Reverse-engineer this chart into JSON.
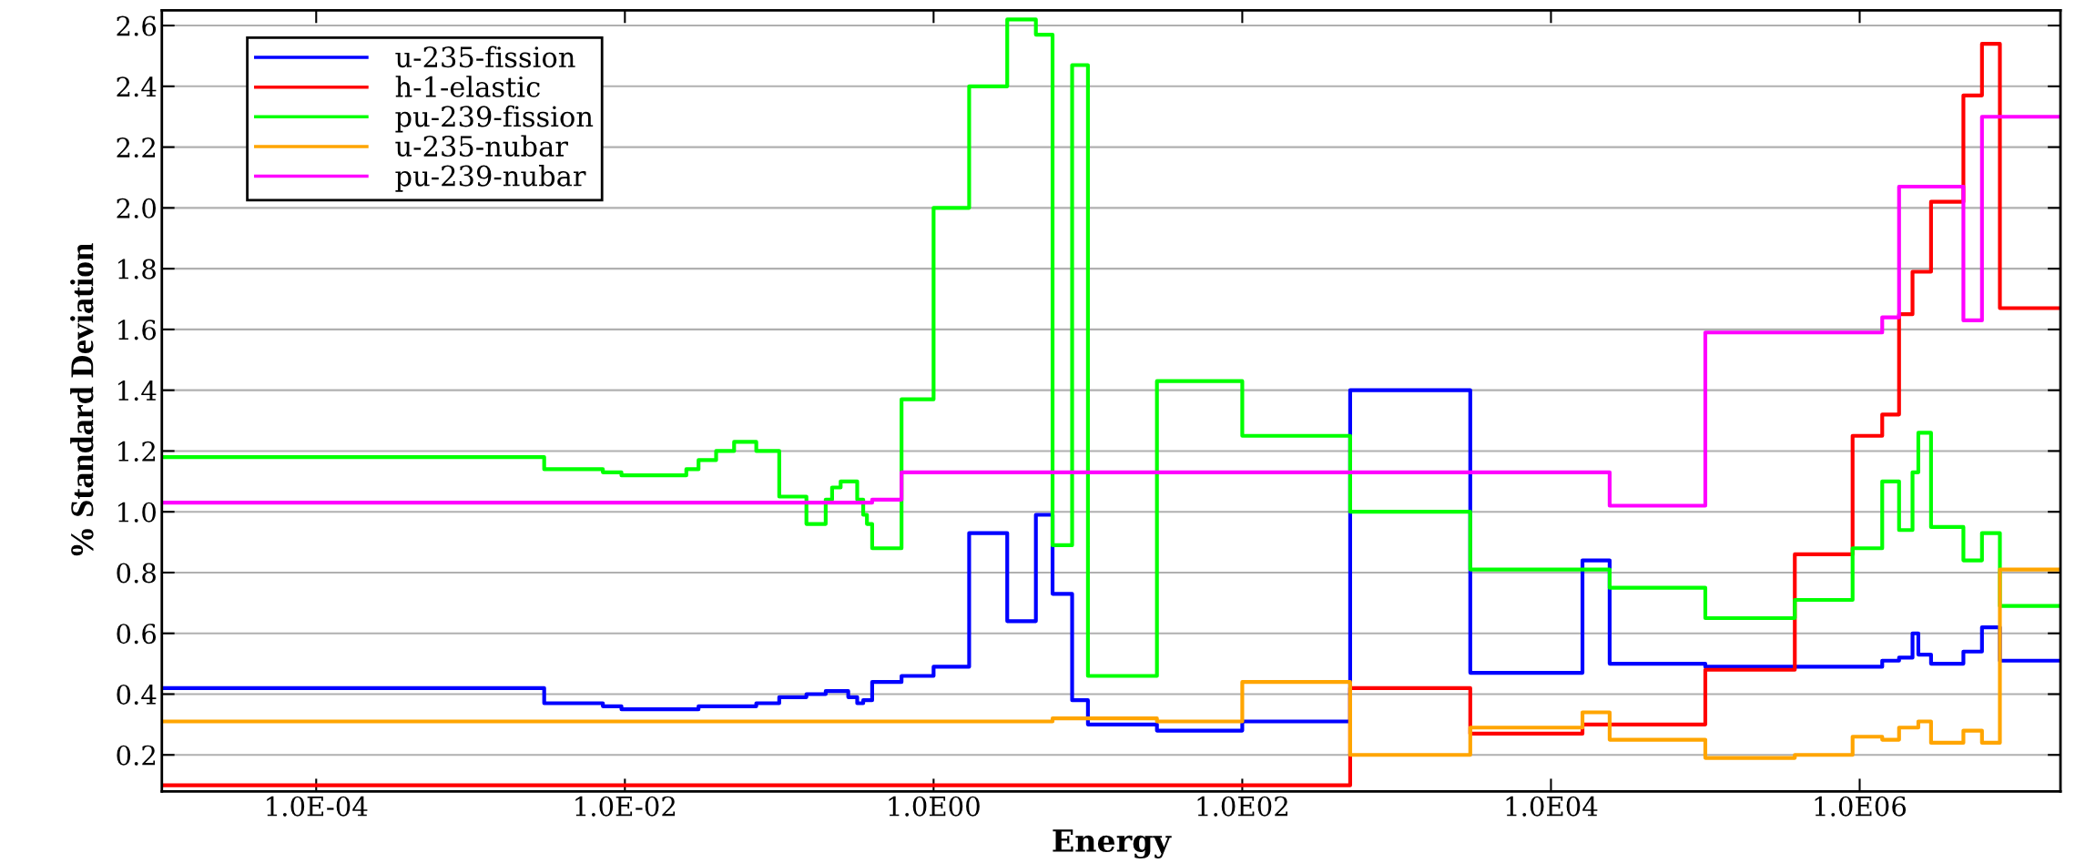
{
  "chart_data": {
    "type": "step",
    "xlabel": "Energy",
    "ylabel": "% Standard Deviation",
    "log": "x",
    "grid": "y",
    "legend": "top left",
    "xlim": [
      1e-05,
      20000000.0
    ],
    "xticks": [
      {
        "value": 0.0001,
        "label": "1.0E-04"
      },
      {
        "value": 0.01,
        "label": "1.0E-02"
      },
      {
        "value": 1,
        "label": "1.0E00"
      },
      {
        "value": 100,
        "label": "1.0E02"
      },
      {
        "value": 10000,
        "label": "1.0E04"
      },
      {
        "value": 1000000,
        "label": "1.0E06"
      }
    ],
    "ylim": [
      0.08,
      2.65
    ],
    "yticks": [
      0.2,
      0.4,
      0.6,
      0.8,
      {
        "value": 1,
        "label": "1.0"
      },
      1.2,
      1.4,
      1.6,
      1.8,
      {
        "value": 2,
        "label": "2.0"
      },
      2.2,
      2.4,
      2.6
    ],
    "series": [
      {
        "name": "u-235-fission",
        "color": "#0000ff",
        "x": [
          1e-05,
          0.003,
          0.0072,
          0.0095,
          0.03,
          0.051,
          0.071,
          0.1,
          0.15,
          0.2,
          0.28,
          0.32,
          0.35,
          0.4,
          0.62,
          1.0,
          1.7,
          3.0,
          4.6,
          5.9,
          7.9,
          10,
          28,
          100,
          500,
          3000,
          16000,
          24000,
          100000,
          900000,
          1400000,
          1800000,
          2200000,
          2400000,
          2900000,
          4700000,
          6200000,
          8100000,
          20000000
        ],
        "values": [
          0.42,
          0.37,
          0.36,
          0.35,
          0.36,
          0.36,
          0.37,
          0.39,
          0.4,
          0.41,
          0.39,
          0.37,
          0.38,
          0.44,
          0.46,
          0.49,
          0.93,
          0.64,
          0.99,
          0.73,
          0.38,
          0.3,
          0.28,
          0.31,
          1.4,
          0.47,
          0.84,
          0.5,
          0.49,
          0.49,
          0.51,
          0.52,
          0.6,
          0.53,
          0.5,
          0.54,
          0.62,
          0.51,
          0.51
        ]
      },
      {
        "name": "h-1-elastic",
        "color": "#ff0000",
        "x": [
          1e-05,
          500,
          3000,
          16000,
          100000,
          380000,
          900000,
          1400000,
          1800000,
          2200000,
          2900000,
          4700000,
          6200000,
          8100000,
          20000000
        ],
        "values": [
          0.1,
          0.42,
          0.27,
          0.3,
          0.48,
          0.86,
          1.25,
          1.32,
          1.65,
          1.79,
          2.02,
          2.37,
          2.54,
          1.67,
          1.67
        ]
      },
      {
        "name": "pu-239-fission",
        "color": "#00ff00",
        "x": [
          1e-05,
          0.003,
          0.0072,
          0.0095,
          0.025,
          0.03,
          0.039,
          0.051,
          0.071,
          0.1,
          0.15,
          0.2,
          0.22,
          0.25,
          0.32,
          0.35,
          0.37,
          0.4,
          0.62,
          1.0,
          1.7,
          3.0,
          4.6,
          5.9,
          7.9,
          10,
          28,
          100,
          500,
          3000,
          24000,
          100000,
          380000,
          900000,
          1400000,
          1800000,
          2200000,
          2400000,
          2900000,
          4700000,
          6200000,
          8100000,
          20000000
        ],
        "values": [
          1.18,
          1.14,
          1.13,
          1.12,
          1.14,
          1.17,
          1.2,
          1.23,
          1.2,
          1.05,
          0.96,
          1.04,
          1.08,
          1.1,
          1.04,
          0.99,
          0.96,
          0.88,
          1.37,
          2.0,
          2.4,
          2.62,
          2.57,
          0.89,
          2.47,
          0.46,
          1.43,
          1.25,
          1.0,
          0.81,
          0.75,
          0.65,
          0.71,
          0.88,
          1.1,
          0.94,
          1.13,
          1.26,
          0.95,
          0.84,
          0.93,
          0.69,
          0.69
        ]
      },
      {
        "name": "u-235-nubar",
        "color": "#ffa500",
        "x": [
          1e-05,
          5.9,
          28,
          100,
          500,
          3000,
          16000,
          24000,
          100000,
          380000,
          900000,
          1400000,
          1800000,
          2400000,
          2900000,
          4700000,
          6200000,
          8100000,
          20000000
        ],
        "values": [
          0.31,
          0.32,
          0.31,
          0.44,
          0.2,
          0.29,
          0.34,
          0.25,
          0.19,
          0.2,
          0.26,
          0.25,
          0.29,
          0.31,
          0.24,
          0.28,
          0.24,
          0.81,
          0.81
        ]
      },
      {
        "name": "pu-239-nubar",
        "color": "#ff00ff",
        "x": [
          1e-05,
          0.4,
          0.62,
          24000,
          100000,
          1400000,
          1800000,
          4700000,
          6200000,
          20000000
        ],
        "values": [
          1.03,
          1.04,
          1.13,
          1.02,
          1.59,
          1.64,
          2.07,
          1.63,
          2.3,
          2.3
        ]
      }
    ]
  }
}
